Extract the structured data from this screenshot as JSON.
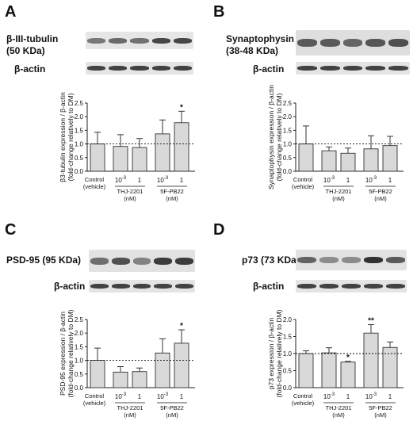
{
  "panels": [
    {
      "letter": "A",
      "protein_label_line1": "β-III-tubulin",
      "protein_label_line2": "(50 KDa)",
      "actin_label": "β-actin",
      "chart_data": {
        "type": "bar",
        "categories": [
          "Control (vehicle)",
          "THJ-2201 10^-3",
          "THJ-2201 1",
          "5F-PB22 10^-3",
          "5F-PB22 1"
        ],
        "values": [
          1.0,
          0.91,
          0.87,
          1.37,
          1.78
        ],
        "errors": [
          0.43,
          0.43,
          0.33,
          0.51,
          0.42
        ],
        "significance": [
          "",
          "",
          "",
          "",
          "*"
        ],
        "ylabel_line1": "β3-tubulin expression / β-actin",
        "ylabel_line2": "(fold-change relatively to DM)",
        "ylim": [
          0,
          2.5
        ],
        "yticks": [
          "0.0",
          "0.5",
          "1.0",
          "1.5",
          "2.0",
          "2.5"
        ],
        "reference_line": 1.0
      },
      "blot_intensity": [
        0.55,
        0.62,
        0.58,
        0.8,
        0.8
      ]
    },
    {
      "letter": "B",
      "protein_label_line1": "Synaptophysin",
      "protein_label_line2": "(38-48 KDa)",
      "actin_label": "β-actin",
      "chart_data": {
        "type": "bar",
        "categories": [
          "Control (vehicle)",
          "THJ-2201 10^-3",
          "THJ-2201 1",
          "5F-PB22 10^-3",
          "5F-PB22 1"
        ],
        "values": [
          1.0,
          0.75,
          0.66,
          0.82,
          0.94
        ],
        "errors": [
          0.66,
          0.14,
          0.19,
          0.48,
          0.34
        ],
        "significance": [
          "",
          "",
          "",
          "",
          ""
        ],
        "ylabel_line1": "Synaptophysin expression / β-actin",
        "ylabel_line2": "(fold-change relatively to DM)",
        "ylim": [
          0,
          2.5
        ],
        "yticks": [
          "0.0",
          "0.5",
          "1.0",
          "1.5",
          "2.0",
          "2.5"
        ],
        "reference_line": 1.0
      },
      "blot_intensity": [
        0.7,
        0.7,
        0.65,
        0.72,
        0.75
      ]
    },
    {
      "letter": "C",
      "protein_label_line1": "PSD-95 (95 KDa)",
      "protein_label_line2": "",
      "actin_label": "β-actin",
      "chart_data": {
        "type": "bar",
        "categories": [
          "Control (vehicle)",
          "THJ-2201 10^-3",
          "THJ-2201 1",
          "5F-PB22 10^-3",
          "5F-PB22 1"
        ],
        "values": [
          1.0,
          0.57,
          0.59,
          1.27,
          1.63
        ],
        "errors": [
          0.45,
          0.2,
          0.13,
          0.52,
          0.49
        ],
        "significance": [
          "",
          "",
          "",
          "",
          "*"
        ],
        "ylabel_line1": "PSD-95 expression / β-actin",
        "ylabel_line2": "(fold-change relatively to DM)",
        "ylim": [
          0,
          2.5
        ],
        "yticks": [
          "0.0",
          "0.5",
          "1.0",
          "1.5",
          "2.0",
          "2.5"
        ],
        "reference_line": 1.0
      },
      "blot_intensity": [
        0.6,
        0.75,
        0.5,
        0.85,
        0.85
      ]
    },
    {
      "letter": "D",
      "protein_label_line1": "p73 (73 KDa)",
      "protein_label_line2": "",
      "actin_label": "β-actin",
      "chart_data": {
        "type": "bar",
        "categories": [
          "Control (vehicle)",
          "THJ-2201 10^-3",
          "THJ-2201 1",
          "5F-PB22 10^-3",
          "5F-PB22 1"
        ],
        "values": [
          1.0,
          1.02,
          0.75,
          1.6,
          1.18
        ],
        "errors": [
          0.08,
          0.15,
          0.02,
          0.25,
          0.16
        ],
        "significance": [
          "",
          "",
          "*",
          "**",
          ""
        ],
        "ylabel_line1": "p73 expression / β-actin",
        "ylabel_line2": "(fold-change relatively to DM)",
        "ylim": [
          0,
          2.0
        ],
        "yticks": [
          "0.0",
          "0.5",
          "1.0",
          "1.5",
          "2.0"
        ],
        "reference_line": 1.0
      },
      "blot_intensity": [
        0.65,
        0.45,
        0.45,
        0.9,
        0.7
      ]
    }
  ],
  "x_axis": {
    "control_line1": "Control",
    "control_line2": "(vehicle)",
    "dose_low_base": "10",
    "dose_low_exp": "-3",
    "dose_high": "1",
    "group1_name": "THJ-2201",
    "group2_name": "5F-PB22",
    "unit": "(nM)"
  },
  "colors": {
    "bar_fill": "#d9d9d9",
    "bar_stroke": "#333333",
    "axis": "#222222"
  }
}
